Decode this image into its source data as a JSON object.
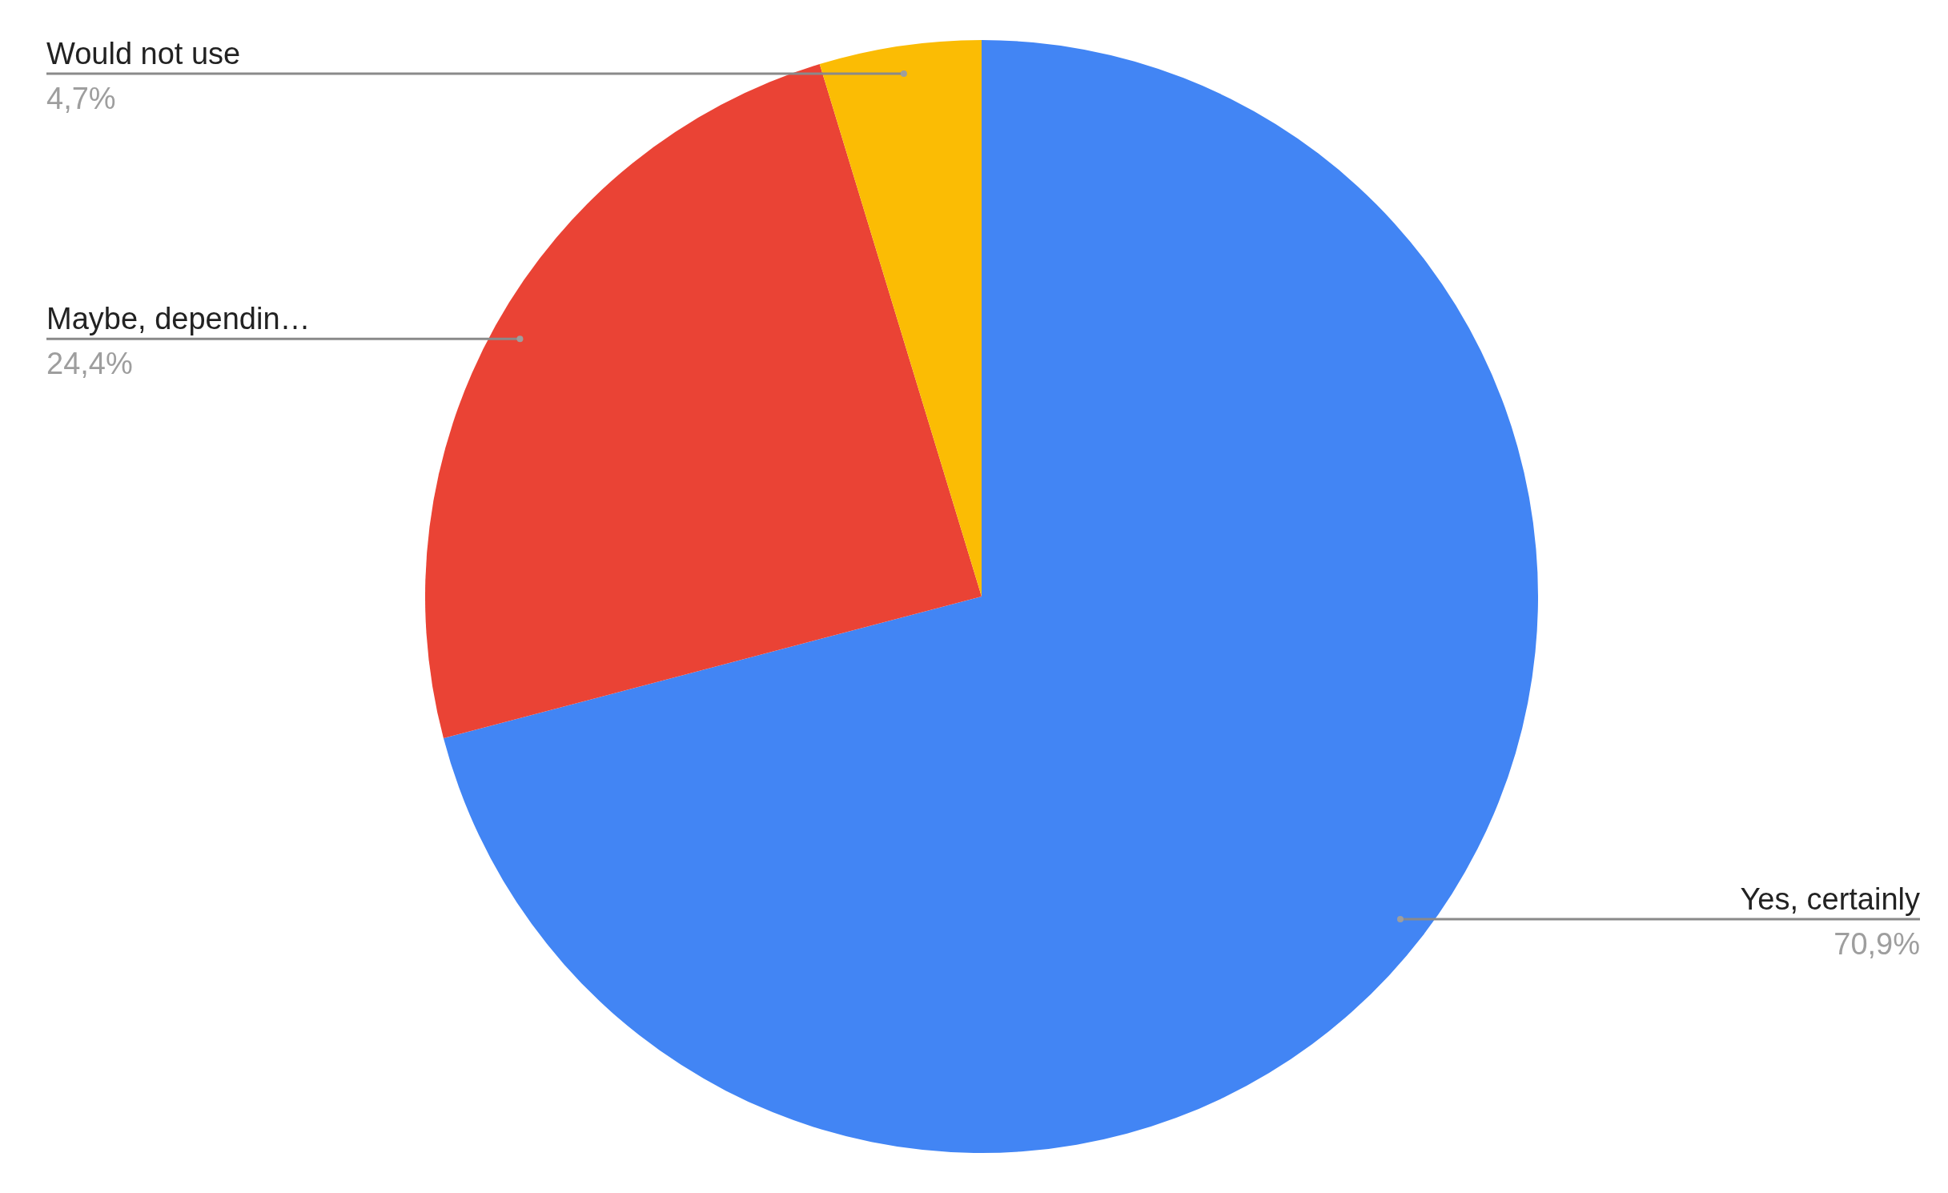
{
  "chart_data": {
    "type": "pie",
    "categories": [
      "Yes, certainly",
      "Maybe, dependin…",
      "Would not use"
    ],
    "values": [
      70.9,
      24.4,
      4.7
    ],
    "colors": [
      "#4285f4",
      "#ea4335",
      "#fbbc04"
    ],
    "value_labels": [
      "70,9%",
      "24,4%",
      "4,7%"
    ]
  }
}
